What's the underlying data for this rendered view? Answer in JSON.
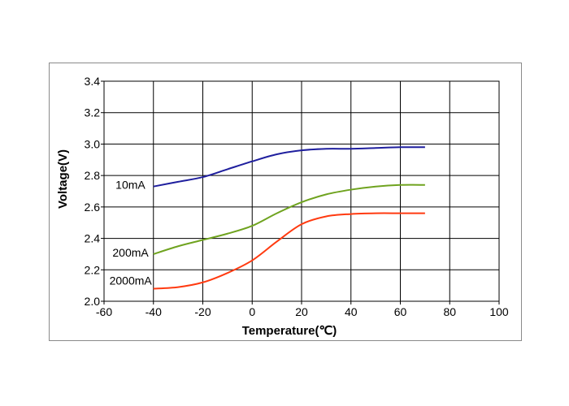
{
  "chart_data": {
    "type": "line",
    "xlabel": "Temperature(℃)",
    "ylabel": "Voltage(V)",
    "xlim": [
      -60,
      100
    ],
    "ylim": [
      2.0,
      3.4
    ],
    "xticks": [
      -60,
      -40,
      -20,
      0,
      20,
      40,
      60,
      80,
      100
    ],
    "yticks": [
      2.0,
      2.2,
      2.4,
      2.6,
      2.8,
      3.0,
      3.2,
      3.4
    ],
    "x_tick_labels": [
      "-60",
      "-40",
      "-20",
      "0",
      "20",
      "40",
      "60",
      "80",
      "100"
    ],
    "y_tick_labels": [
      "2.0",
      "2.2",
      "2.4",
      "2.6",
      "2.8",
      "3.0",
      "3.2",
      "3.4"
    ],
    "grid": true,
    "legend": "labels next to series at left",
    "series": [
      {
        "name": "10mA",
        "color": "#1f1f9e",
        "x": [
          -40,
          -30,
          -20,
          -10,
          0,
          10,
          20,
          30,
          40,
          50,
          60,
          70
        ],
        "y": [
          2.73,
          2.76,
          2.79,
          2.84,
          2.89,
          2.935,
          2.96,
          2.97,
          2.97,
          2.975,
          2.98,
          2.98
        ]
      },
      {
        "name": "200mA",
        "color": "#6fa31f",
        "x": [
          -40,
          -30,
          -20,
          -10,
          0,
          10,
          20,
          30,
          40,
          50,
          60,
          70
        ],
        "y": [
          2.3,
          2.35,
          2.39,
          2.43,
          2.48,
          2.56,
          2.63,
          2.68,
          2.71,
          2.73,
          2.74,
          2.74
        ]
      },
      {
        "name": "2000mA",
        "color": "#ff3a10",
        "x": [
          -40,
          -30,
          -20,
          -10,
          0,
          10,
          20,
          30,
          40,
          50,
          60,
          70
        ],
        "y": [
          2.08,
          2.09,
          2.12,
          2.18,
          2.26,
          2.38,
          2.49,
          2.54,
          2.555,
          2.56,
          2.56,
          2.56
        ]
      }
    ]
  }
}
